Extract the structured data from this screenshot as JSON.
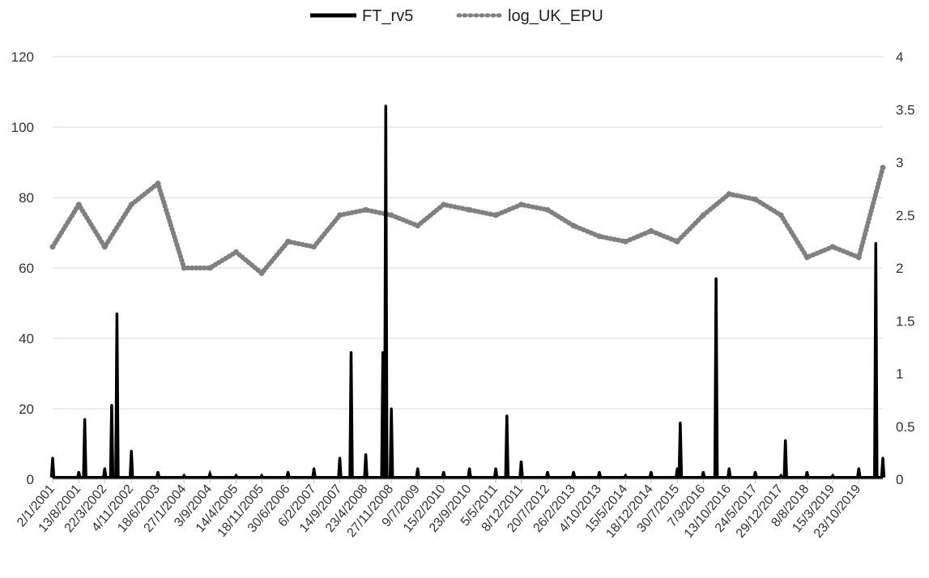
{
  "chart_data": {
    "type": "line",
    "title": "",
    "xlabel": "",
    "ylabel": "",
    "ylim": [
      0,
      120
    ],
    "y2lim": [
      0,
      4
    ],
    "y_ticks": [
      "0",
      "20",
      "40",
      "60",
      "80",
      "100",
      "120"
    ],
    "y2_ticks": [
      "0",
      "0.5",
      "1",
      "1.5",
      "2",
      "2.5",
      "3",
      "3.5",
      "4"
    ],
    "x_tick_labels": [
      "2/1/2001",
      "13/8/2001",
      "22/3/2002",
      "4/11/2002",
      "18/6/2003",
      "27/1/2004",
      "3/9/2004",
      "14/4/2005",
      "18/11/2005",
      "30/6/2006",
      "6/2/2007",
      "14/9/2007",
      "23/4/2008",
      "27/11/2008",
      "9/7/2009",
      "15/2/2010",
      "23/9/2010",
      "5/5/2011",
      "8/12/2011",
      "20/7/2012",
      "26/2/2013",
      "4/10/2013",
      "15/5/2014",
      "18/12/2014",
      "30/7/2015",
      "7/3/2016",
      "13/10/2016",
      "24/5/2017",
      "29/12/2017",
      "8/8/2018",
      "15/3/2019",
      "23/10/2019"
    ],
    "grid": true,
    "legend_position": "top-center",
    "series": [
      {
        "name": "FT_rv5",
        "axis": "left",
        "style": "solid",
        "color": "#000000",
        "x": [
          "2/1/2001",
          "13/8/2001",
          "2/10/2001",
          "22/3/2002",
          "20/5/2002",
          "4/7/2002",
          "4/11/2002",
          "18/6/2003",
          "27/1/2004",
          "3/9/2004",
          "14/4/2005",
          "18/11/2005",
          "30/6/2006",
          "6/2/2007",
          "14/9/2007",
          "20/12/2007",
          "23/4/2008",
          "15/9/2008",
          "10/10/2008",
          "27/11/2008",
          "9/7/2009",
          "15/2/2010",
          "23/9/2010",
          "5/5/2011",
          "8/8/2011",
          "8/12/2011",
          "20/7/2012",
          "26/2/2013",
          "4/10/2013",
          "15/5/2014",
          "18/12/2014",
          "30/7/2015",
          "24/8/2015",
          "7/3/2016",
          "24/6/2016",
          "13/10/2016",
          "24/5/2017",
          "29/12/2017",
          "5/2/2018",
          "8/8/2018",
          "15/3/2019",
          "23/10/2019",
          "16/3/2020",
          "15/5/2020"
        ],
        "values": [
          6,
          2,
          17,
          3,
          21,
          47,
          8,
          2,
          1,
          1.5,
          1,
          1,
          2,
          3,
          6,
          36,
          7,
          36,
          106,
          20,
          3,
          2,
          3,
          3,
          18,
          5,
          2,
          2,
          2,
          1,
          2,
          3,
          16,
          2,
          57,
          3,
          2,
          1,
          11,
          2,
          1,
          3,
          67,
          6
        ]
      },
      {
        "name": "log_UK_EPU",
        "axis": "right",
        "style": "dotted",
        "color": "#808080",
        "x": [
          "2/1/2001",
          "13/8/2001",
          "22/3/2002",
          "4/11/2002",
          "18/6/2003",
          "27/1/2004",
          "3/9/2004",
          "14/4/2005",
          "18/11/2005",
          "30/6/2006",
          "6/2/2007",
          "14/9/2007",
          "23/4/2008",
          "27/11/2008",
          "9/7/2009",
          "15/2/2010",
          "23/9/2010",
          "5/5/2011",
          "8/12/2011",
          "20/7/2012",
          "26/2/2013",
          "4/10/2013",
          "15/5/2014",
          "18/12/2014",
          "30/7/2015",
          "7/3/2016",
          "13/10/2016",
          "24/5/2017",
          "29/12/2017",
          "8/8/2018",
          "15/3/2019",
          "23/10/2019",
          "15/5/2020"
        ],
        "values": [
          2.2,
          2.6,
          2.2,
          2.6,
          2.8,
          2.0,
          2.0,
          2.15,
          1.95,
          2.25,
          2.2,
          2.5,
          2.55,
          2.5,
          2.4,
          2.6,
          2.55,
          2.5,
          2.6,
          2.55,
          2.4,
          2.3,
          2.25,
          2.35,
          2.25,
          2.5,
          2.7,
          2.65,
          2.5,
          2.1,
          2.2,
          2.1,
          2.95
        ]
      }
    ]
  }
}
